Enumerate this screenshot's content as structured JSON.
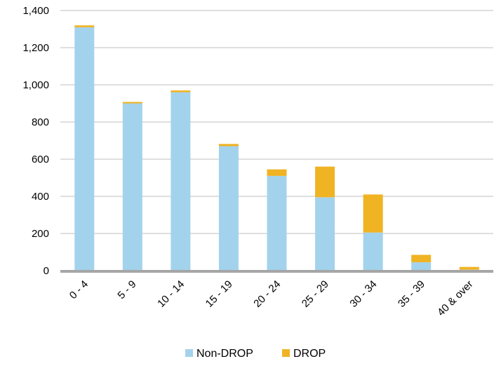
{
  "chart_data": {
    "type": "bar",
    "stacked": true,
    "title": "",
    "xlabel": "",
    "ylabel": "",
    "categories": [
      "0 - 4",
      "5 - 9",
      "10 - 14",
      "15 - 19",
      "20 - 24",
      "25 - 29",
      "30 - 34",
      "35 - 39",
      "40 & over"
    ],
    "series": [
      {
        "name": "Non-DROP",
        "color": "#a3d3ec",
        "values": [
          1310,
          900,
          960,
          670,
          510,
          395,
          205,
          45,
          5
        ]
      },
      {
        "name": "DROP",
        "color": "#f0b323",
        "values": [
          10,
          8,
          10,
          12,
          35,
          165,
          205,
          40,
          15
        ]
      }
    ],
    "ylim": [
      0,
      1400
    ],
    "yticks": [
      "0",
      "200",
      "400",
      "600",
      "800",
      "1,000",
      "1,200",
      "1,400"
    ],
    "ytick_values": [
      0,
      200,
      400,
      600,
      800,
      1000,
      1200,
      1400
    ],
    "grid": true,
    "legend_position": "bottom"
  }
}
